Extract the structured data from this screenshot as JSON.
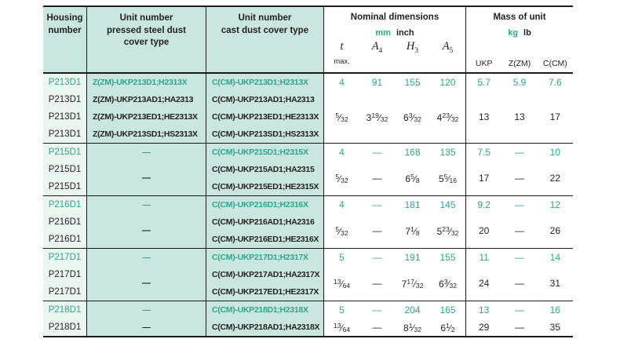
{
  "header": {
    "housing": "Housing\nnumber",
    "pressed": "Unit number\npressed steel dust\ncover type",
    "cast": "Unit number\ncast dust cover type",
    "dims": {
      "title": "Nominal dimensions",
      "unit_mm": "mm",
      "unit_inch": "inch",
      "cols": [
        {
          "sym": "t",
          "sub": "",
          "max": "max."
        },
        {
          "sym": "A",
          "sub": "4"
        },
        {
          "sym": "H",
          "sub": "3"
        },
        {
          "sym": "A",
          "sub": "5"
        }
      ]
    },
    "mass": {
      "title": "Mass of unit",
      "unit_kg": "kg",
      "unit_lb": "lb",
      "cols": [
        "UKP",
        "Z(ZM)",
        "C(CM)"
      ]
    }
  },
  "colors": {
    "teal_text": "#2ea58c",
    "teal_background": "#c9e7df",
    "housing_background": "#eaf5f0"
  },
  "blocks": [
    {
      "rows": [
        {
          "housing": "P213D1",
          "pressed": "Z(ZM)-UKP213D1;H2313X",
          "cast": "C(CM)-UKP213D1;H2313X"
        },
        {
          "housing": "P213D1",
          "pressed": "Z(ZM)-UKP213AD1;HA2313",
          "cast": "C(CM)-UKP213AD1;HA2313"
        },
        {
          "housing": "P213D1",
          "pressed": "Z(ZM)-UKP213ED1;HE2313X",
          "cast": "C(CM)-UKP213ED1;HE2313X"
        },
        {
          "housing": "P213D1",
          "pressed": "Z(ZM)-UKP213SD1;HS2313X",
          "cast": "C(CM)-UKP213SD1;HS2313X"
        }
      ],
      "mm": [
        "4",
        "91",
        "155",
        "120"
      ],
      "inch": [
        {
          "w": "",
          "n": "5",
          "d": "32"
        },
        {
          "w": "3",
          "n": "19",
          "d": "32"
        },
        {
          "w": "6",
          "n": "3",
          "d": "32"
        },
        {
          "w": "4",
          "n": "23",
          "d": "32"
        }
      ],
      "kg": [
        "5.7",
        "5.9",
        "7.6"
      ],
      "lb": [
        "13",
        "13",
        "17"
      ]
    },
    {
      "rows": [
        {
          "housing": "P215D1",
          "pressed": "—",
          "cast": "C(CM)-UKP215D1;H2315X"
        },
        {
          "housing": "P215D1",
          "pressed": "—",
          "cast": "C(CM)-UKP215AD1;HA2315"
        },
        {
          "housing": "P215D1",
          "cast": "C(CM)-UKP215ED1;HE2315X"
        }
      ],
      "mm": [
        "4",
        "—",
        "168",
        "135"
      ],
      "inch": [
        {
          "w": "",
          "n": "5",
          "d": "32"
        },
        {
          "dash": "—"
        },
        {
          "w": "6",
          "n": "5",
          "d": "8"
        },
        {
          "w": "5",
          "n": "5",
          "d": "16"
        }
      ],
      "kg": [
        "7.5",
        "—",
        "10"
      ],
      "lb": [
        "17",
        "—",
        "22"
      ]
    },
    {
      "rows": [
        {
          "housing": "P216D1",
          "pressed": "—",
          "cast": "C(CM)-UKP216D1;H2316X"
        },
        {
          "housing": "P216D1",
          "pressed": "—",
          "cast": "C(CM)-UKP216AD1;HA2316"
        },
        {
          "housing": "P216D1",
          "cast": "C(CM)-UKP216ED1;HE2316X"
        }
      ],
      "mm": [
        "4",
        "—",
        "181",
        "145"
      ],
      "inch": [
        {
          "w": "",
          "n": "5",
          "d": "32"
        },
        {
          "dash": "—"
        },
        {
          "w": "7",
          "n": "1",
          "d": "8"
        },
        {
          "w": "5",
          "n": "23",
          "d": "32"
        }
      ],
      "kg": [
        "9.2",
        "—",
        "12"
      ],
      "lb": [
        "20",
        "—",
        "26"
      ]
    },
    {
      "rows": [
        {
          "housing": "P217D1",
          "pressed": "—",
          "cast": "C(CM)-UKP217D1;H2317X"
        },
        {
          "housing": "P217D1",
          "pressed": "—",
          "cast": "C(CM)-UKP217AD1;HA2317X"
        },
        {
          "housing": "P217D1",
          "cast": "C(CM)-UKP217ED1;HE2317X"
        }
      ],
      "mm": [
        "5",
        "—",
        "191",
        "155"
      ],
      "inch": [
        {
          "w": "",
          "n": "13",
          "d": "64"
        },
        {
          "dash": "—"
        },
        {
          "w": "7",
          "n": "17",
          "d": "32"
        },
        {
          "w": "6",
          "n": "3",
          "d": "32"
        }
      ],
      "kg": [
        "11",
        "—",
        "14"
      ],
      "lb": [
        "24",
        "—",
        "31"
      ]
    },
    {
      "rows": [
        {
          "housing": "P218D1",
          "pressed": "—",
          "cast": "C(CM)-UKP218D1;H2318X"
        },
        {
          "housing": "P218D1",
          "pressed": "—",
          "cast": "C(CM)-UKP218AD1;HA2318X"
        }
      ],
      "mm": [
        "5",
        "—",
        "204",
        "165"
      ],
      "inch": [
        {
          "w": "",
          "n": "13",
          "d": "64"
        },
        {
          "dash": "—"
        },
        {
          "w": "8",
          "n": "1",
          "d": "32"
        },
        {
          "w": "6",
          "n": "1",
          "d": "2"
        }
      ],
      "kg": [
        "13",
        "—",
        "16"
      ],
      "lb": [
        "29",
        "—",
        "35"
      ]
    }
  ]
}
